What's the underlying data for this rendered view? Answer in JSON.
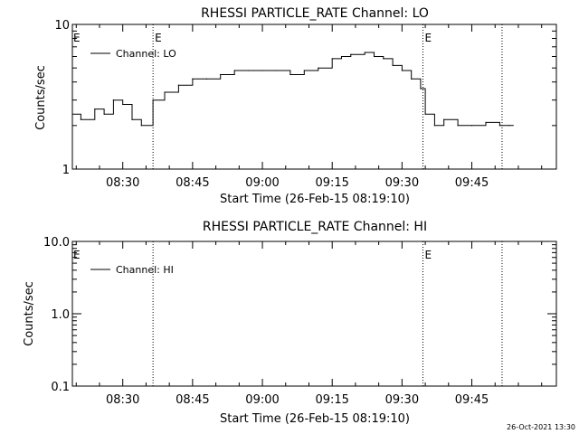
{
  "footer": {
    "timestamp": "26-Oct-2021 13:30"
  },
  "chart_data": [
    {
      "type": "line",
      "title": "RHESSI PARTICLE_RATE Channel: LO",
      "xlabel": "Start Time (26-Feb-15 08:19:10)",
      "ylabel": "Counts/sec",
      "y_scale": "log",
      "ylim": [
        1,
        10
      ],
      "y_ticks": [
        "1",
        "10"
      ],
      "x_tick_labels": [
        "08:30",
        "08:45",
        "09:00",
        "09:15",
        "09:30",
        "09:45"
      ],
      "x_tick_minutes": [
        510,
        525,
        540,
        555,
        570,
        585
      ],
      "xlim_minutes": [
        499.17,
        603.17
      ],
      "legend": "Channel: LO",
      "legend_position": "top-left",
      "events": [
        {
          "minute": 516.5,
          "label": "E"
        },
        {
          "minute": 574.5,
          "label": "E"
        },
        {
          "minute": 591.5,
          "label": ""
        }
      ],
      "event_e_at_left_edge": true,
      "series": [
        {
          "name": "Channel: LO",
          "minute": [
            499.2,
            501,
            504,
            506,
            508,
            510,
            512,
            514,
            516.5,
            519,
            522,
            525,
            528,
            531,
            534,
            537,
            540,
            543,
            546,
            549,
            552,
            555,
            557,
            559,
            562,
            564,
            566,
            568,
            570,
            572,
            574,
            575,
            577,
            579,
            582,
            585,
            588,
            591,
            593
          ],
          "value": [
            2.4,
            2.2,
            2.6,
            2.4,
            3.0,
            2.8,
            2.2,
            2.0,
            3.0,
            3.4,
            3.8,
            4.2,
            4.2,
            4.5,
            4.8,
            4.8,
            4.8,
            4.8,
            4.5,
            4.8,
            5.0,
            5.8,
            6.0,
            6.2,
            6.4,
            6.0,
            5.8,
            5.2,
            4.8,
            4.2,
            3.6,
            2.4,
            2.0,
            2.2,
            2.0,
            2.0,
            2.1,
            2.0,
            2.0
          ]
        }
      ]
    },
    {
      "type": "line",
      "title": "RHESSI PARTICLE_RATE Channel: HI",
      "xlabel": "Start Time (26-Feb-15 08:19:10)",
      "ylabel": "Counts/sec",
      "y_scale": "log",
      "ylim": [
        0.1,
        10
      ],
      "y_ticks": [
        "0.1",
        "1.0",
        "10.0"
      ],
      "x_tick_labels": [
        "08:30",
        "08:45",
        "09:00",
        "09:15",
        "09:30",
        "09:45"
      ],
      "x_tick_minutes": [
        510,
        525,
        540,
        555,
        570,
        585
      ],
      "xlim_minutes": [
        499.17,
        603.17
      ],
      "legend": "Channel: HI",
      "legend_position": "top-left",
      "events": [
        {
          "minute": 516.5,
          "label": ""
        },
        {
          "minute": 574.5,
          "label": "E"
        },
        {
          "minute": 591.5,
          "label": ""
        }
      ],
      "event_e_at_left_edge": true,
      "series": [
        {
          "name": "Channel: HI",
          "minute": [],
          "value": []
        }
      ]
    }
  ]
}
